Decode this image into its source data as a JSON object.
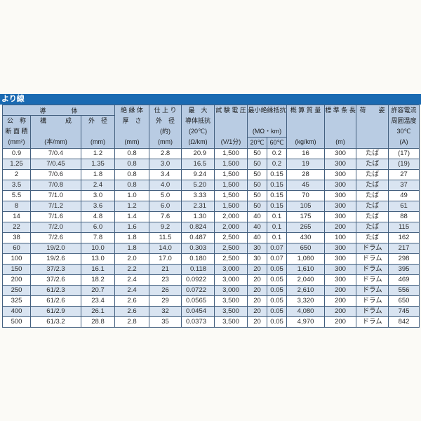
{
  "page": {
    "title": "より線"
  },
  "colors": {
    "title_bar": "#1a6ab2",
    "header_bg": "#b9cce3",
    "stripe": "#d9e4f1",
    "border": "#44607f"
  },
  "table": {
    "header": {
      "conductor_group": "導　　　　体",
      "c1": [
        "公　称",
        "断 面 積",
        "(mm²)"
      ],
      "c2": [
        "構　　　成",
        "",
        "(本/mm)"
      ],
      "c3": [
        "外　径",
        "",
        "(mm)"
      ],
      "c4": [
        "絶 縁 体",
        "厚　さ",
        "",
        "(mm)"
      ],
      "c5": [
        "仕 上 り",
        "外　径",
        "(約)",
        "(mm)"
      ],
      "c6": [
        "最　大",
        "導体抵抗",
        "(20℃)",
        "(Ω/km)"
      ],
      "c7": [
        "試 験 電 圧",
        "",
        "",
        "(V/1分)"
      ],
      "c89": [
        "最小絶縁抵抗",
        "",
        "(MΩ・km)"
      ],
      "c8": "20℃",
      "c9": "60℃",
      "c10": [
        "概 算 質 量",
        "",
        "",
        "(kg/km)"
      ],
      "c11": [
        "標 準 条 長",
        "",
        "",
        "(m)"
      ],
      "c12": [
        "荷　　姿",
        "",
        "",
        ""
      ],
      "c13": [
        "許容電流",
        "周囲温度",
        "30℃",
        "(A)"
      ]
    },
    "rows": [
      [
        "0.9",
        "7/0.4",
        "1.2",
        "0.8",
        "2.8",
        "20.9",
        "1,500",
        "50",
        "0.2",
        "16",
        "300",
        "たば",
        "(17)"
      ],
      [
        "1.25",
        "7/0.45",
        "1.35",
        "0.8",
        "3.0",
        "16.5",
        "1,500",
        "50",
        "0.2",
        "19",
        "300",
        "たば",
        "(19)"
      ],
      [
        "2",
        "7/0.6",
        "1.8",
        "0.8",
        "3.4",
        "9.24",
        "1,500",
        "50",
        "0.15",
        "28",
        "300",
        "たば",
        "27"
      ],
      [
        "3.5",
        "7/0.8",
        "2.4",
        "0.8",
        "4.0",
        "5.20",
        "1,500",
        "50",
        "0.15",
        "45",
        "300",
        "たば",
        "37"
      ],
      [
        "5.5",
        "7/1.0",
        "3.0",
        "1.0",
        "5.0",
        "3.33",
        "1,500",
        "50",
        "0.15",
        "70",
        "300",
        "たば",
        "49"
      ],
      [
        "8",
        "7/1.2",
        "3.6",
        "1.2",
        "6.0",
        "2.31",
        "1,500",
        "50",
        "0.15",
        "105",
        "300",
        "たば",
        "61"
      ],
      [
        "14",
        "7/1.6",
        "4.8",
        "1.4",
        "7.6",
        "1.30",
        "2,000",
        "40",
        "0.1",
        "175",
        "300",
        "たば",
        "88"
      ],
      [
        "22",
        "7/2.0",
        "6.0",
        "1.6",
        "9.2",
        "0.824",
        "2,000",
        "40",
        "0.1",
        "265",
        "200",
        "たば",
        "115"
      ],
      [
        "38",
        "7/2.6",
        "7.8",
        "1.8",
        "11.5",
        "0.487",
        "2,500",
        "40",
        "0.1",
        "430",
        "100",
        "たば",
        "162"
      ],
      [
        "60",
        "19/2.0",
        "10.0",
        "1.8",
        "14.0",
        "0.303",
        "2,500",
        "30",
        "0.07",
        "650",
        "300",
        "ドラム",
        "217"
      ],
      [
        "100",
        "19/2.6",
        "13.0",
        "2.0",
        "17.0",
        "0.180",
        "2,500",
        "30",
        "0.07",
        "1,080",
        "300",
        "ドラム",
        "298"
      ],
      [
        "150",
        "37/2.3",
        "16.1",
        "2.2",
        "21",
        "0.118",
        "3,000",
        "20",
        "0.05",
        "1,610",
        "300",
        "ドラム",
        "395"
      ],
      [
        "200",
        "37/2.6",
        "18.2",
        "2.4",
        "23",
        "0.0922",
        "3,000",
        "20",
        "0.05",
        "2,040",
        "300",
        "ドラム",
        "469"
      ],
      [
        "250",
        "61/2.3",
        "20.7",
        "2.4",
        "26",
        "0.0722",
        "3,000",
        "20",
        "0.05",
        "2,610",
        "200",
        "ドラム",
        "556"
      ],
      [
        "325",
        "61/2.6",
        "23.4",
        "2.6",
        "29",
        "0.0565",
        "3,500",
        "20",
        "0.05",
        "3,320",
        "200",
        "ドラム",
        "650"
      ],
      [
        "400",
        "61/2.9",
        "26.1",
        "2.6",
        "32",
        "0.0454",
        "3,500",
        "20",
        "0.05",
        "4,080",
        "200",
        "ドラム",
        "745"
      ],
      [
        "500",
        "61/3.2",
        "28.8",
        "2.8",
        "35",
        "0.0373",
        "3,500",
        "20",
        "0.05",
        "4,970",
        "200",
        "ドラム",
        "842"
      ]
    ]
  }
}
